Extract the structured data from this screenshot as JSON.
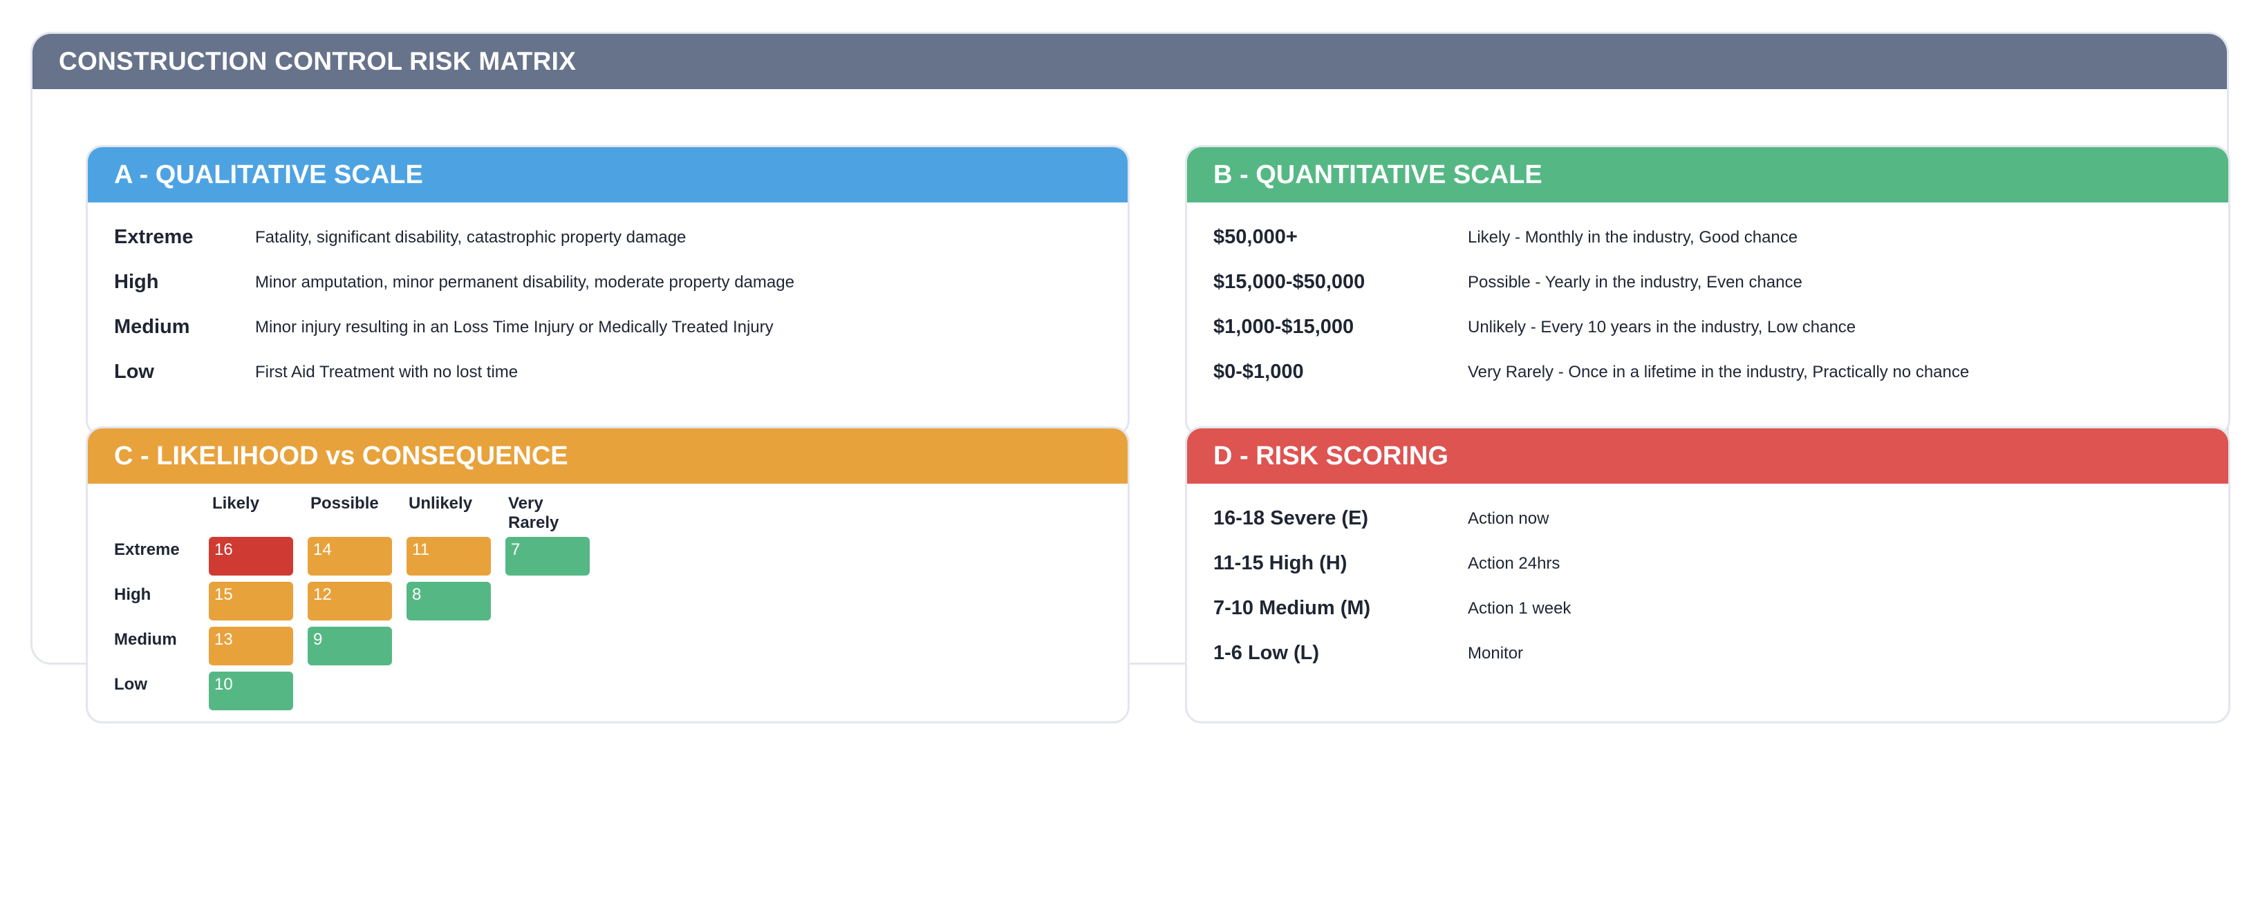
{
  "title": "CONSTRUCTION CONTROL RISK MATRIX",
  "colors": {
    "title_bar": "#67738b",
    "panel_a": "#4da3e2",
    "panel_b": "#55b884",
    "panel_c": "#e8a23b",
    "panel_d": "#dd5451",
    "cell_red": "#cf3b33",
    "cell_orange": "#e8a23b",
    "cell_green": "#55b884"
  },
  "panel_a": {
    "title": "A - QUALITATIVE SCALE",
    "rows": [
      {
        "label": "Extreme",
        "desc": "Fatality, significant disability, catastrophic property damage"
      },
      {
        "label": "High",
        "desc": "Minor amputation, minor permanent disability, moderate property damage"
      },
      {
        "label": "Medium",
        "desc": "Minor injury resulting in an Loss Time Injury or Medically Treated Injury"
      },
      {
        "label": "Low",
        "desc": "First Aid Treatment with no lost time"
      }
    ]
  },
  "panel_b": {
    "title": "B - QUANTITATIVE SCALE",
    "rows": [
      {
        "label": "$50,000+",
        "desc": "Likely - Monthly in the industry, Good chance"
      },
      {
        "label": "$15,000-$50,000",
        "desc": "Possible - Yearly in the industry, Even chance"
      },
      {
        "label": "$1,000-$15,000",
        "desc": "Unlikely - Every 10 years in the industry, Low chance"
      },
      {
        "label": "$0-$1,000",
        "desc": "Very Rarely - Once in a lifetime in the industry, Practically no chance"
      }
    ]
  },
  "panel_c": {
    "title": "C - LIKELIHOOD vs CONSEQUENCE",
    "columns": [
      "Likely",
      "Possible",
      "Unlikely",
      "Very Rarely"
    ],
    "rows": [
      {
        "label": "Extreme",
        "cells": [
          {
            "value": "16",
            "level": "red"
          },
          {
            "value": "14",
            "level": "orange"
          },
          {
            "value": "11",
            "level": "orange"
          },
          {
            "value": "7",
            "level": "green"
          }
        ]
      },
      {
        "label": "High",
        "cells": [
          {
            "value": "15",
            "level": "orange"
          },
          {
            "value": "12",
            "level": "orange"
          },
          {
            "value": "8",
            "level": "green"
          }
        ]
      },
      {
        "label": "Medium",
        "cells": [
          {
            "value": "13",
            "level": "orange"
          },
          {
            "value": "9",
            "level": "green"
          }
        ]
      },
      {
        "label": "Low",
        "cells": [
          {
            "value": "10",
            "level": "green"
          }
        ]
      }
    ]
  },
  "panel_d": {
    "title": "D - RISK SCORING",
    "rows": [
      {
        "label": "16-18 Severe (E)",
        "desc": "Action now"
      },
      {
        "label": "11-15 High (H)",
        "desc": "Action 24hrs"
      },
      {
        "label": "7-10 Medium (M)",
        "desc": "Action 1 week"
      },
      {
        "label": "1-6 Low (L)",
        "desc": "Monitor"
      }
    ]
  }
}
